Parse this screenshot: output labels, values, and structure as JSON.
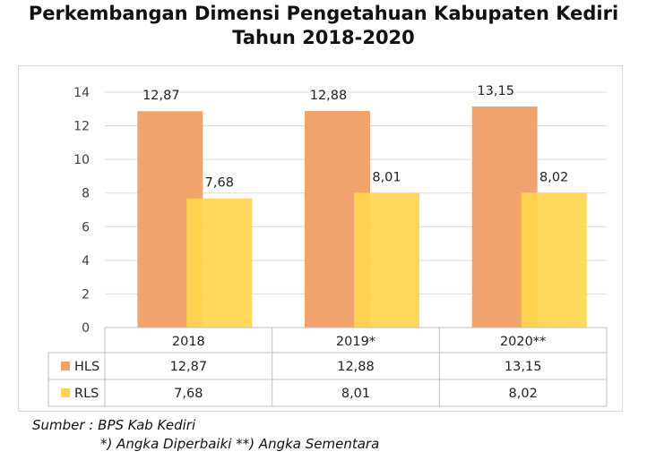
{
  "title_line1": "Perkembangan Dimensi Pengetahuan Kabupaten Kediri",
  "title_line2": "Tahun 2018-2020",
  "source_line1": "Sumber : BPS Kab Kediri",
  "source_line2": "*) Angka Diperbaiki **) Angka Sementara",
  "chart_data": {
    "type": "bar",
    "categories": [
      "2018",
      "2019*",
      "2020**"
    ],
    "series": [
      {
        "name": "HLS",
        "values": [
          12.87,
          12.88,
          13.15
        ],
        "labels": [
          "12,87",
          "12,88",
          "13,15"
        ],
        "color": "#f0a46c"
      },
      {
        "name": "RLS",
        "values": [
          7.68,
          8.01,
          8.02
        ],
        "labels": [
          "7,68",
          "8,01",
          "8,02"
        ],
        "color": "#ffd54f"
      }
    ],
    "ylim": [
      0,
      14
    ],
    "yticks": [
      0,
      2,
      4,
      6,
      8,
      10,
      12,
      14
    ],
    "grid": true,
    "data_table": true
  }
}
